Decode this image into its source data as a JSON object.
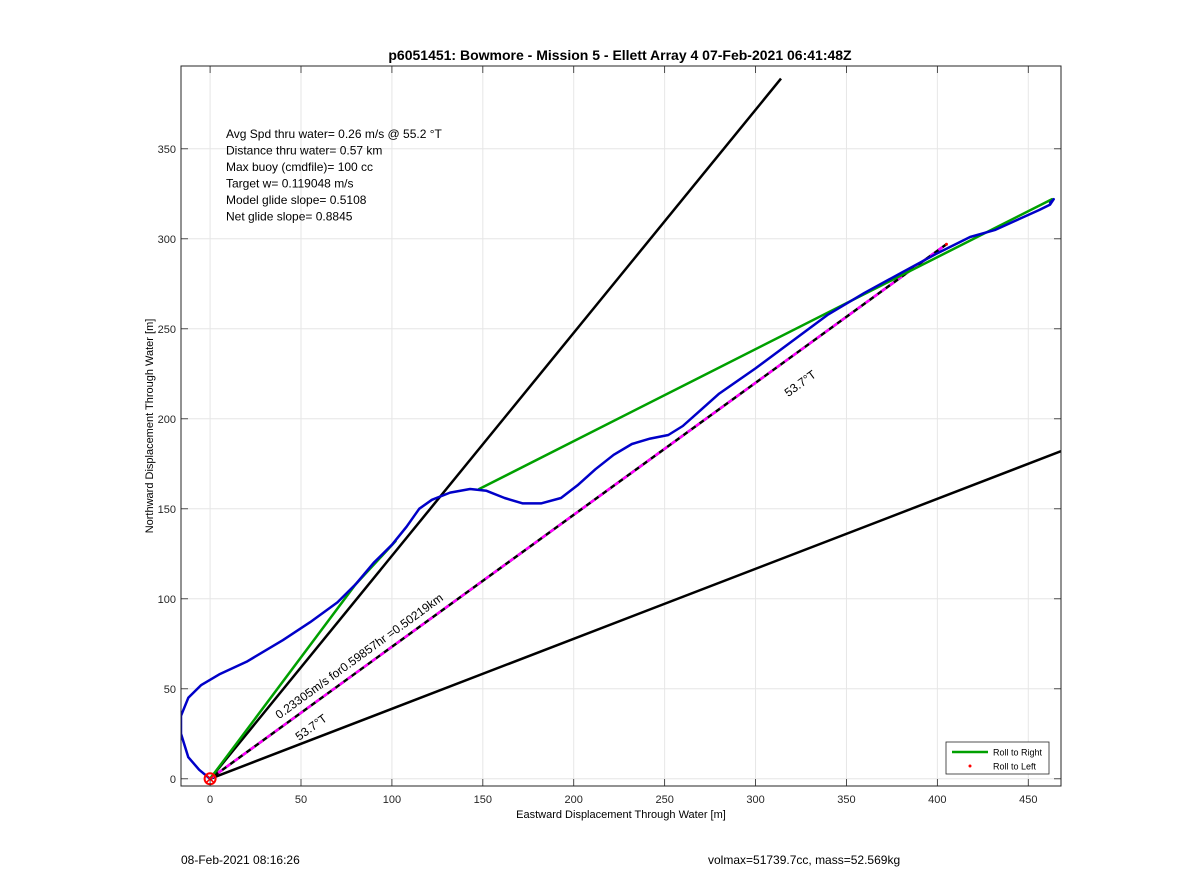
{
  "chart_data": {
    "type": "line",
    "title": "p6051451: Bowmore - Mission 5 - Ellett Array 4 07-Feb-2021 06:41:48Z",
    "xlabel": "Eastward Displacement Through Water [m]",
    "ylabel": "Northward Displacement Through Water [m]",
    "xlim": [
      -16,
      468
    ],
    "ylim": [
      -4,
      396
    ],
    "xticks": [
      0,
      50,
      100,
      150,
      200,
      250,
      300,
      350,
      400,
      450
    ],
    "yticks": [
      0,
      50,
      100,
      150,
      200,
      250,
      300,
      350
    ],
    "grid": true,
    "legend_position": "bottom-right",
    "legend": [
      {
        "label": "Roll to Right",
        "color": "#00a000",
        "style": "line"
      },
      {
        "label": "Roll to Left",
        "color": "#ff0000",
        "style": "dot"
      }
    ],
    "stats_lines": [
      "Avg Spd thru water=  0.26 m/s @  55.2 °T",
      "Distance thru water=  0.57 km",
      "Max buoy (cmdfile)= 100 cc",
      "Target w= 0.119048 m/s",
      "Model glide slope= 0.5108",
      "Net glide slope= 0.8845"
    ],
    "annotations": [
      {
        "text": "53.7°T",
        "x": 318,
        "y": 212,
        "angle_deg": 53.7
      },
      {
        "text": "53.7°T",
        "x": 49,
        "y": 21,
        "angle_deg": 53.7
      },
      {
        "text": "0.23305m/s for0.59857hr =0.50219km",
        "x": 38,
        "y": 33,
        "angle_deg": 53.7
      }
    ],
    "series": [
      {
        "name": "Roll to Right",
        "kind": "segments",
        "color": "#00a000",
        "segments": [
          [
            [
              0,
              0
            ],
            [
              80,
              108
            ]
          ],
          [
            [
              80,
              108
            ],
            [
              102,
              132
            ]
          ],
          [
            [
              148,
              161
            ],
            [
              463,
              322
            ]
          ]
        ]
      },
      {
        "name": "Roll to Left",
        "kind": "dots",
        "color": "#ff0000",
        "points": [
          [
            0,
            0
          ],
          [
            405,
            297
          ]
        ]
      },
      {
        "kind": "path",
        "color": "#0000c8",
        "points": [
          [
            0,
            0
          ],
          [
            -6,
            5
          ],
          [
            -12,
            12
          ],
          [
            -16,
            25
          ],
          [
            -16,
            35
          ],
          [
            -12,
            45
          ],
          [
            -5,
            52
          ],
          [
            5,
            58
          ],
          [
            20,
            65
          ],
          [
            40,
            77
          ],
          [
            55,
            87
          ],
          [
            70,
            98
          ],
          [
            80,
            108
          ],
          [
            90,
            120
          ],
          [
            100,
            130
          ],
          [
            108,
            140
          ],
          [
            115,
            150
          ],
          [
            122,
            155
          ],
          [
            132,
            159
          ],
          [
            143,
            161
          ],
          [
            152,
            160
          ],
          [
            162,
            156
          ],
          [
            172,
            153
          ],
          [
            182,
            153
          ],
          [
            193,
            156
          ],
          [
            202,
            163
          ],
          [
            212,
            172
          ],
          [
            222,
            180
          ],
          [
            232,
            186
          ],
          [
            242,
            189
          ],
          [
            252,
            191
          ],
          [
            260,
            196
          ],
          [
            270,
            205
          ],
          [
            280,
            214
          ],
          [
            300,
            228
          ],
          [
            320,
            243
          ],
          [
            340,
            258
          ],
          [
            360,
            270
          ],
          [
            380,
            281
          ],
          [
            400,
            292
          ],
          [
            418,
            301
          ],
          [
            432,
            305
          ],
          [
            445,
            311
          ],
          [
            456,
            316
          ],
          [
            462,
            319
          ],
          [
            464,
            322
          ],
          [
            462,
            320
          ]
        ]
      }
    ],
    "reference_lines": [
      {
        "from": [
          0,
          0
        ],
        "to": [
          314,
          389
        ],
        "style": "solid",
        "color": "#000000"
      },
      {
        "from": [
          0,
          0
        ],
        "to": [
          468,
          182
        ],
        "style": "solid",
        "color": "#000000"
      },
      {
        "from": [
          0,
          0
        ],
        "to": [
          405,
          297
        ],
        "style": "dashed-black-magenta",
        "color": "#000000",
        "overlay_color": "#ff00ff"
      }
    ],
    "start_marker": {
      "x": 0,
      "y": 0,
      "color": "#ff0000"
    }
  },
  "footer": {
    "left": "08-Feb-2021 08:16:26",
    "right": "volmax=51739.7cc, mass=52.569kg"
  }
}
